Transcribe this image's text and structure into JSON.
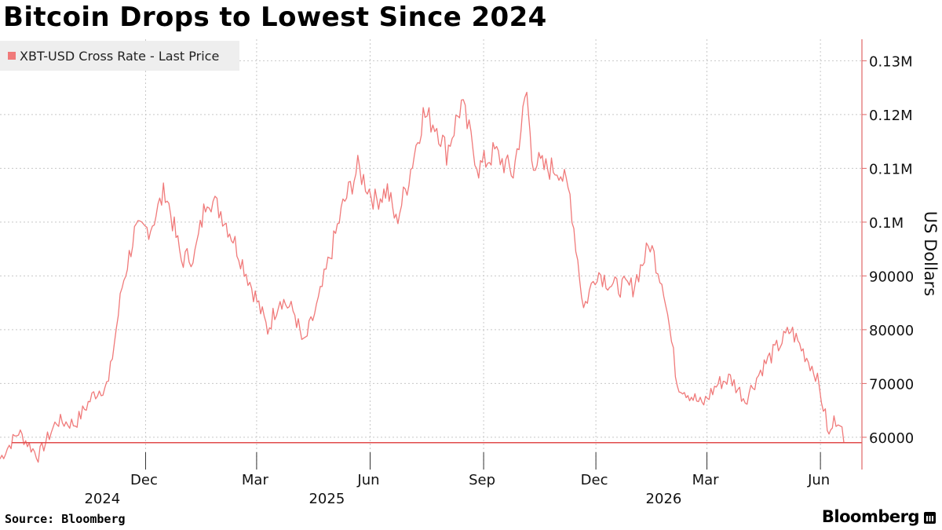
{
  "header": {
    "title": "Bitcoin Drops to Lowest Since 2024"
  },
  "legend": {
    "label": "XBT-USD Cross Rate - Last Price",
    "color": "#f07a7a"
  },
  "footer": {
    "source": "Source: Bloomberg",
    "logo_text": "Bloomberg"
  },
  "colors": {
    "line": "#f07a7a",
    "axis": "#e06666",
    "grid": "#c8c8c8",
    "baseline": "#e04b4b"
  },
  "chart_data": {
    "type": "line",
    "series_name": "XBT-USD Cross Rate - Last Price",
    "ylabel": "US Dollars",
    "ylim": [
      54000,
      134000
    ],
    "y_ticks": [
      60000,
      70000,
      80000,
      90000,
      100000,
      110000,
      120000,
      130000
    ],
    "y_tick_labels": [
      "60000",
      "70000",
      "80000",
      "90000",
      "0.1M",
      "0.11M",
      "0.12M",
      "0.13M"
    ],
    "x_range": [
      "2024-08-05",
      "2026-06-20"
    ],
    "x_ticks": [
      {
        "date": "2024-12-01",
        "label": "Dec",
        "year": "2024"
      },
      {
        "date": "2025-03-01",
        "label": "Mar",
        "year": ""
      },
      {
        "date": "2025-06-01",
        "label": "Jun",
        "year": "2025"
      },
      {
        "date": "2025-09-01",
        "label": "Sep",
        "year": ""
      },
      {
        "date": "2025-12-01",
        "label": "Dec",
        "year": ""
      },
      {
        "date": "2026-03-01",
        "label": "Mar",
        "year": "2026"
      },
      {
        "date": "2026-06-01",
        "label": "Jun",
        "year": ""
      }
    ],
    "last_price_line": 59000,
    "points": [
      [
        "2024-08-05",
        56000
      ],
      [
        "2024-08-20",
        61000
      ],
      [
        "2024-09-05",
        56500
      ],
      [
        "2024-09-20",
        63000
      ],
      [
        "2024-10-05",
        62500
      ],
      [
        "2024-10-20",
        68000
      ],
      [
        "2024-11-01",
        70000
      ],
      [
        "2024-11-12",
        88000
      ],
      [
        "2024-11-22",
        98000
      ],
      [
        "2024-12-05",
        99000
      ],
      [
        "2024-12-17",
        106000
      ],
      [
        "2024-12-30",
        93000
      ],
      [
        "2025-01-10",
        94000
      ],
      [
        "2025-01-20",
        105000
      ],
      [
        "2025-01-31",
        102000
      ],
      [
        "2025-02-10",
        97000
      ],
      [
        "2025-02-25",
        88000
      ],
      [
        "2025-03-10",
        80000
      ],
      [
        "2025-03-20",
        86000
      ],
      [
        "2025-04-01",
        83000
      ],
      [
        "2025-04-08",
        77000
      ],
      [
        "2025-04-20",
        85000
      ],
      [
        "2025-05-01",
        95000
      ],
      [
        "2025-05-10",
        103000
      ],
      [
        "2025-05-22",
        110000
      ],
      [
        "2025-06-05",
        104000
      ],
      [
        "2025-06-15",
        106000
      ],
      [
        "2025-06-22",
        100000
      ],
      [
        "2025-07-01",
        107000
      ],
      [
        "2025-07-14",
        120000
      ],
      [
        "2025-07-25",
        118000
      ],
      [
        "2025-08-02",
        113000
      ],
      [
        "2025-08-14",
        122000
      ],
      [
        "2025-08-28",
        110000
      ],
      [
        "2025-09-10",
        113000
      ],
      [
        "2025-09-25",
        109000
      ],
      [
        "2025-10-06",
        124000
      ],
      [
        "2025-10-10",
        112000
      ],
      [
        "2025-10-20",
        110000
      ],
      [
        "2025-11-01",
        110000
      ],
      [
        "2025-11-10",
        105000
      ],
      [
        "2025-11-21",
        84000
      ],
      [
        "2025-12-02",
        91000
      ],
      [
        "2025-12-15",
        88000
      ],
      [
        "2025-12-31",
        88000
      ],
      [
        "2026-01-14",
        96000
      ],
      [
        "2026-01-25",
        88000
      ],
      [
        "2026-02-05",
        70000
      ],
      [
        "2026-02-15",
        68000
      ],
      [
        "2026-02-25",
        66000
      ],
      [
        "2026-03-10",
        70000
      ],
      [
        "2026-03-20",
        71000
      ],
      [
        "2026-04-01",
        67000
      ],
      [
        "2026-04-15",
        73000
      ],
      [
        "2026-04-28",
        77000
      ],
      [
        "2026-05-08",
        80000
      ],
      [
        "2026-05-18",
        76000
      ],
      [
        "2026-05-28",
        72000
      ],
      [
        "2026-06-05",
        64000
      ],
      [
        "2026-06-08",
        60000
      ],
      [
        "2026-06-12",
        63000
      ],
      [
        "2026-06-17",
        63500
      ],
      [
        "2026-06-20",
        59000
      ]
    ]
  }
}
